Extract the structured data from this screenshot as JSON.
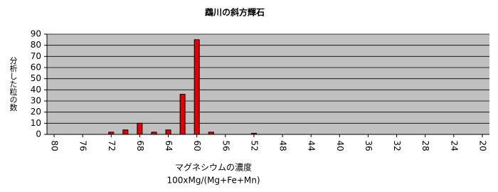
{
  "chart_data": {
    "type": "bar",
    "title": "鵡川の斜方輝石",
    "ylabel": "分析した粒の数",
    "xlabel": "マグネシウムの濃度",
    "xlabel2": "100xMg/(Mg+Fe+Mn)",
    "x": [
      72,
      70,
      68,
      66,
      64,
      62,
      60,
      58,
      52
    ],
    "values": [
      2,
      4,
      10,
      2,
      4,
      36,
      85,
      2,
      1
    ],
    "color": "#e00000",
    "xlim": [
      81,
      19
    ],
    "xticks": [
      80,
      76,
      72,
      68,
      64,
      60,
      56,
      52,
      48,
      44,
      40,
      36,
      32,
      28,
      24,
      20
    ],
    "ylim": [
      0,
      90
    ],
    "yticks": [
      0,
      10,
      20,
      30,
      40,
      50,
      60,
      70,
      80,
      90
    ],
    "grid": true
  }
}
